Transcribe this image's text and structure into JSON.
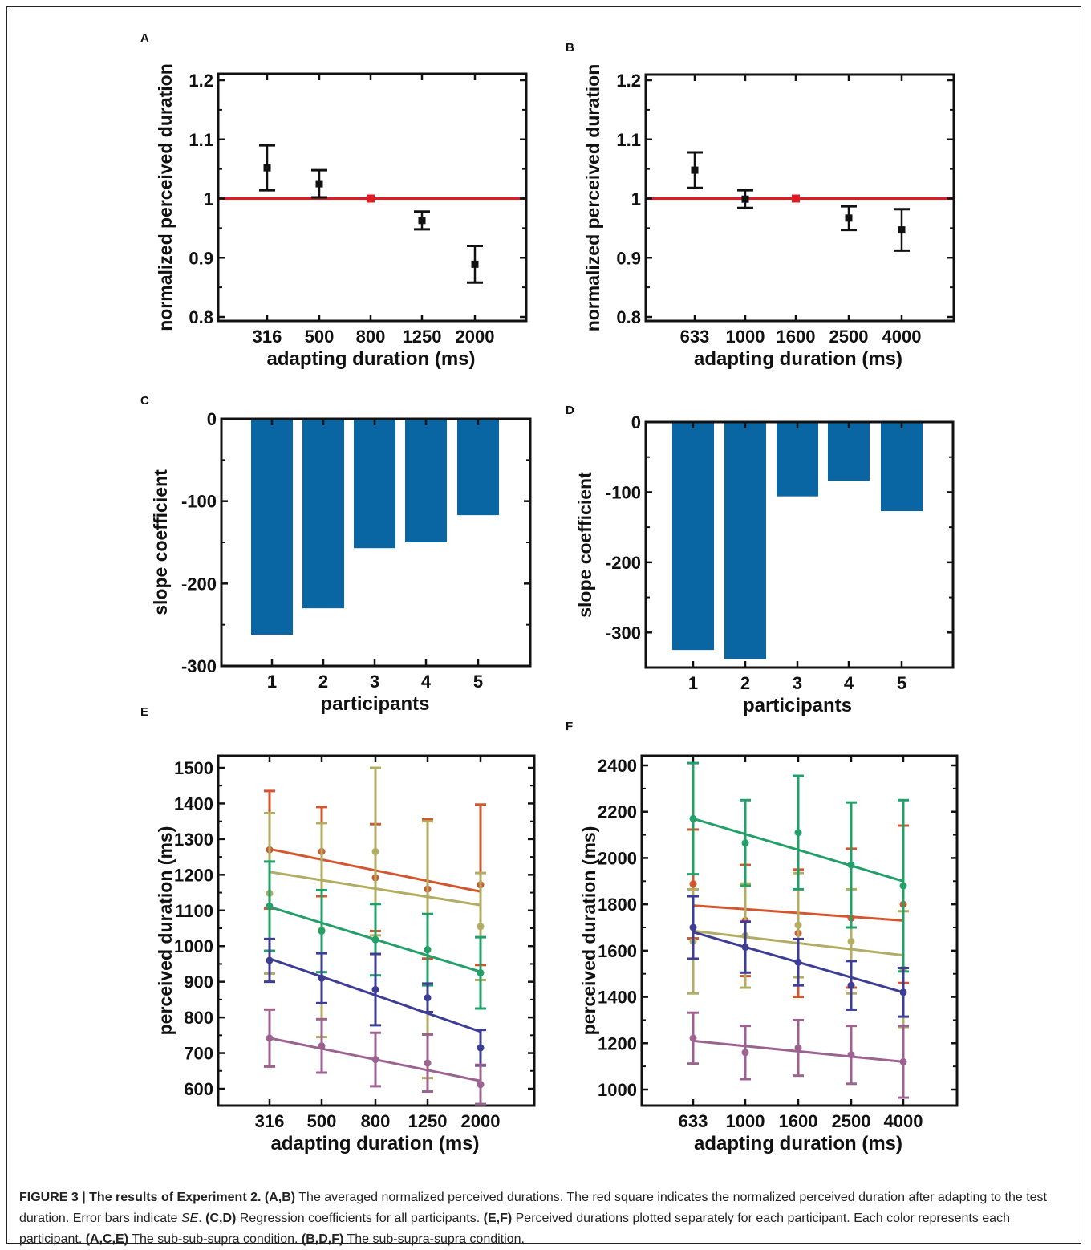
{
  "caption": {
    "figure_label": "FIGURE 3 | The results of Experiment 2.",
    "p1_ref": "(A,B)",
    "p1_text": " The averaged normalized perceived durations. The red square indicates the normalized perceived duration after adapting to the test duration. Error bars indicate ",
    "p1_se": "SE",
    "p1_end": ". ",
    "p2_ref": "(C,D)",
    "p2_text": " Regression coefficients for all participants. ",
    "p3_ref": "(E,F)",
    "p3_text": " Perceived durations plotted separately for each participant. Each color represents each participant. ",
    "p4_ref": "(A,C,E)",
    "p4_text": " The sub-sub-supra condition. ",
    "p5_ref": "(B,D,F)",
    "p5_text": " The sub-supra-supra condition."
  },
  "colors": {
    "marker": "#111111",
    "reference": "#e01b24",
    "bar": "#0a66a3",
    "participants": [
      "#d2572e",
      "#b2ad63",
      "#23a069",
      "#3d3d96",
      "#9c6390"
    ]
  },
  "chart_data": [
    {
      "panel": "A",
      "type": "errorbar",
      "categories": [
        "316",
        "500",
        "800",
        "1250",
        "2000"
      ],
      "xlabel": "adapting duration (ms)",
      "ylabel": "normalized perceived duration",
      "ylim": [
        0.8,
        1.2
      ],
      "yticks": [
        "0.8",
        "0.9",
        "1",
        "1.1",
        "1.2"
      ],
      "reference_line": 1,
      "reference_index": 2,
      "values": [
        1.052,
        1.025,
        1.0,
        0.963,
        0.889
      ],
      "errors": [
        0.038,
        0.023,
        0,
        0.015,
        0.031
      ]
    },
    {
      "panel": "B",
      "type": "errorbar",
      "categories": [
        "633",
        "1000",
        "1600",
        "2500",
        "4000"
      ],
      "xlabel": "adapting duration (ms)",
      "ylabel": "normalized perceived duration",
      "ylim": [
        0.8,
        1.2
      ],
      "yticks": [
        "0.8",
        "0.9",
        "1",
        "1.1",
        "1.2"
      ],
      "reference_line": 1,
      "reference_index": 2,
      "values": [
        1.048,
        0.999,
        1.0,
        0.967,
        0.947
      ],
      "errors": [
        0.03,
        0.015,
        0,
        0.02,
        0.035
      ]
    },
    {
      "panel": "C",
      "type": "bar",
      "categories": [
        "1",
        "2",
        "3",
        "4",
        "5"
      ],
      "xlabel": "participants",
      "ylabel": "slope coefficient",
      "ylim": [
        -300,
        0
      ],
      "yticks": [
        "0",
        "-100",
        "-200",
        "-300"
      ],
      "values": [
        -262,
        -230,
        -157,
        -150,
        -117
      ]
    },
    {
      "panel": "D",
      "type": "bar",
      "categories": [
        "1",
        "2",
        "3",
        "4",
        "5"
      ],
      "xlabel": "participants",
      "ylabel": "slope coefficient",
      "ylim": [
        -350,
        0
      ],
      "yticks": [
        "0",
        "-100",
        "-200",
        "-300"
      ],
      "values": [
        -325,
        -338,
        -106,
        -84,
        -127
      ]
    },
    {
      "panel": "E",
      "type": "line",
      "categories": [
        "316",
        "500",
        "800",
        "1250",
        "2000"
      ],
      "xlabel": "adapting duration (ms)",
      "ylabel": "perceived duration (ms)",
      "ylim": [
        550,
        1530
      ],
      "yticks": [
        "600",
        "700",
        "800",
        "900",
        "1000",
        "1100",
        "1200",
        "1300",
        "1400",
        "1500"
      ],
      "series": [
        {
          "values": [
            1270,
            1265,
            1192,
            1160,
            1172
          ],
          "errors": [
            165,
            125,
            150,
            195,
            225
          ],
          "fit": [
            1272,
            1153
          ]
        },
        {
          "values": [
            1148,
            1045,
            1265,
            990,
            1055
          ],
          "errors": [
            225,
            300,
            235,
            360,
            150
          ],
          "fit": [
            1208,
            1115
          ]
        },
        {
          "values": [
            1112,
            1042,
            1018,
            990,
            925
          ],
          "errors": [
            125,
            115,
            100,
            100,
            100
          ],
          "fit": [
            1110,
            928
          ]
        },
        {
          "values": [
            960,
            910,
            878,
            855,
            715
          ],
          "errors": [
            60,
            70,
            100,
            40,
            50
          ],
          "fit": [
            965,
            760
          ]
        },
        {
          "values": [
            742,
            720,
            682,
            672,
            612
          ],
          "errors": [
            80,
            75,
            75,
            80,
            55
          ],
          "fit": [
            742,
            622
          ]
        }
      ]
    },
    {
      "panel": "F",
      "type": "line",
      "categories": [
        "633",
        "1000",
        "1600",
        "2500",
        "4000"
      ],
      "xlabel": "adapting duration (ms)",
      "ylabel": "perceived duration (ms)",
      "ylim": [
        950,
        2420
      ],
      "yticks": [
        "1000",
        "1200",
        "1400",
        "1600",
        "1800",
        "2000",
        "2200",
        "2400"
      ],
      "series": [
        {
          "values": [
            1888,
            1730,
            1675,
            1740,
            1800
          ],
          "errors": [
            235,
            240,
            275,
            300,
            340
          ],
          "fit": [
            1795,
            1730
          ]
        },
        {
          "values": [
            1640,
            1665,
            1710,
            1640,
            1520
          ],
          "errors": [
            225,
            225,
            225,
            225,
            250
          ],
          "fit": [
            1685,
            1580
          ]
        },
        {
          "values": [
            2170,
            2065,
            2110,
            1970,
            1880
          ],
          "errors": [
            240,
            185,
            245,
            270,
            370
          ],
          "fit": [
            2170,
            1900
          ]
        },
        {
          "values": [
            1700,
            1615,
            1550,
            1450,
            1420
          ],
          "errors": [
            135,
            110,
            100,
            105,
            105
          ],
          "fit": [
            1680,
            1420
          ]
        },
        {
          "values": [
            1222,
            1160,
            1180,
            1150,
            1120
          ],
          "errors": [
            110,
            115,
            120,
            125,
            155
          ],
          "fit": [
            1210,
            1120
          ]
        }
      ]
    }
  ]
}
